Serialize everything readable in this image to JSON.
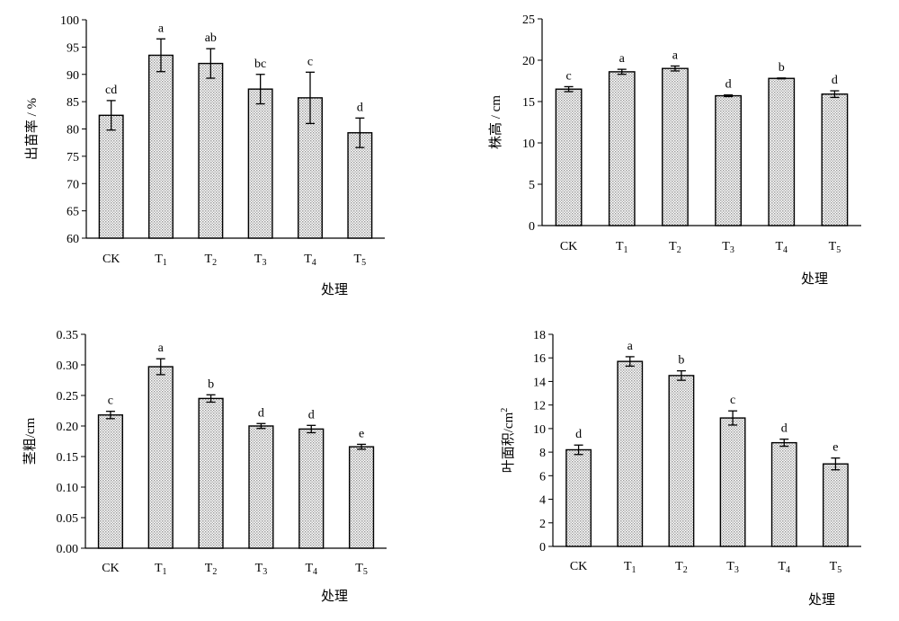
{
  "hatch_color": "#a0a0a0",
  "chart_data": [
    {
      "type": "bar",
      "categories": [
        "CK",
        "T1",
        "T2",
        "T3",
        "T4",
        "T5"
      ],
      "values": [
        82.5,
        93.5,
        92.0,
        87.3,
        85.7,
        79.3
      ],
      "errors": [
        2.7,
        3.0,
        2.7,
        2.7,
        4.7,
        2.7
      ],
      "labels": [
        "cd",
        "a",
        "ab",
        "bc",
        "c",
        "d"
      ],
      "ylabel": "出苗率 / %",
      "xlabel": "处理",
      "ylim": [
        60,
        100
      ],
      "yticks": [
        "60",
        "65",
        "70",
        "75",
        "80",
        "85",
        "90",
        "95",
        "100"
      ]
    },
    {
      "type": "bar",
      "categories": [
        "CK",
        "T1",
        "T2",
        "T3",
        "T4",
        "T5"
      ],
      "values": [
        16.5,
        18.6,
        19.0,
        15.7,
        17.8,
        15.9
      ],
      "errors": [
        0.3,
        0.3,
        0.3,
        0.1,
        0.05,
        0.4
      ],
      "labels": [
        "c",
        "a",
        "a",
        "d",
        "b",
        "d"
      ],
      "ylabel": "株高 / cm",
      "xlabel": "处理",
      "ylim": [
        0,
        25
      ],
      "yticks": [
        "0",
        "5",
        "10",
        "15",
        "20",
        "25"
      ]
    },
    {
      "type": "bar",
      "categories": [
        "CK",
        "T1",
        "T2",
        "T3",
        "T4",
        "T5"
      ],
      "values": [
        0.218,
        0.297,
        0.245,
        0.2,
        0.195,
        0.166
      ],
      "errors": [
        0.006,
        0.013,
        0.006,
        0.004,
        0.006,
        0.004
      ],
      "labels": [
        "c",
        "a",
        "b",
        "d",
        "d",
        "e"
      ],
      "ylabel": "茎粗/cm",
      "xlabel": "处理",
      "ylim": [
        0,
        0.35
      ],
      "yticks": [
        "0.00",
        "0.05",
        "0.10",
        "0.15",
        "0.20",
        "0.25",
        "0.30",
        "0.35"
      ]
    },
    {
      "type": "bar",
      "categories": [
        "CK",
        "T1",
        "T2",
        "T3",
        "T4",
        "T5"
      ],
      "values": [
        8.2,
        15.7,
        14.5,
        10.9,
        8.8,
        7.0
      ],
      "errors": [
        0.4,
        0.4,
        0.4,
        0.6,
        0.3,
        0.5
      ],
      "labels": [
        "d",
        "a",
        "b",
        "c",
        "d",
        "e"
      ],
      "ylabel": "叶面积/cm²",
      "xlabel": "处理",
      "ylim": [
        0,
        18
      ],
      "yticks": [
        "0",
        "2",
        "4",
        "6",
        "8",
        "10",
        "12",
        "14",
        "16",
        "18"
      ]
    }
  ]
}
